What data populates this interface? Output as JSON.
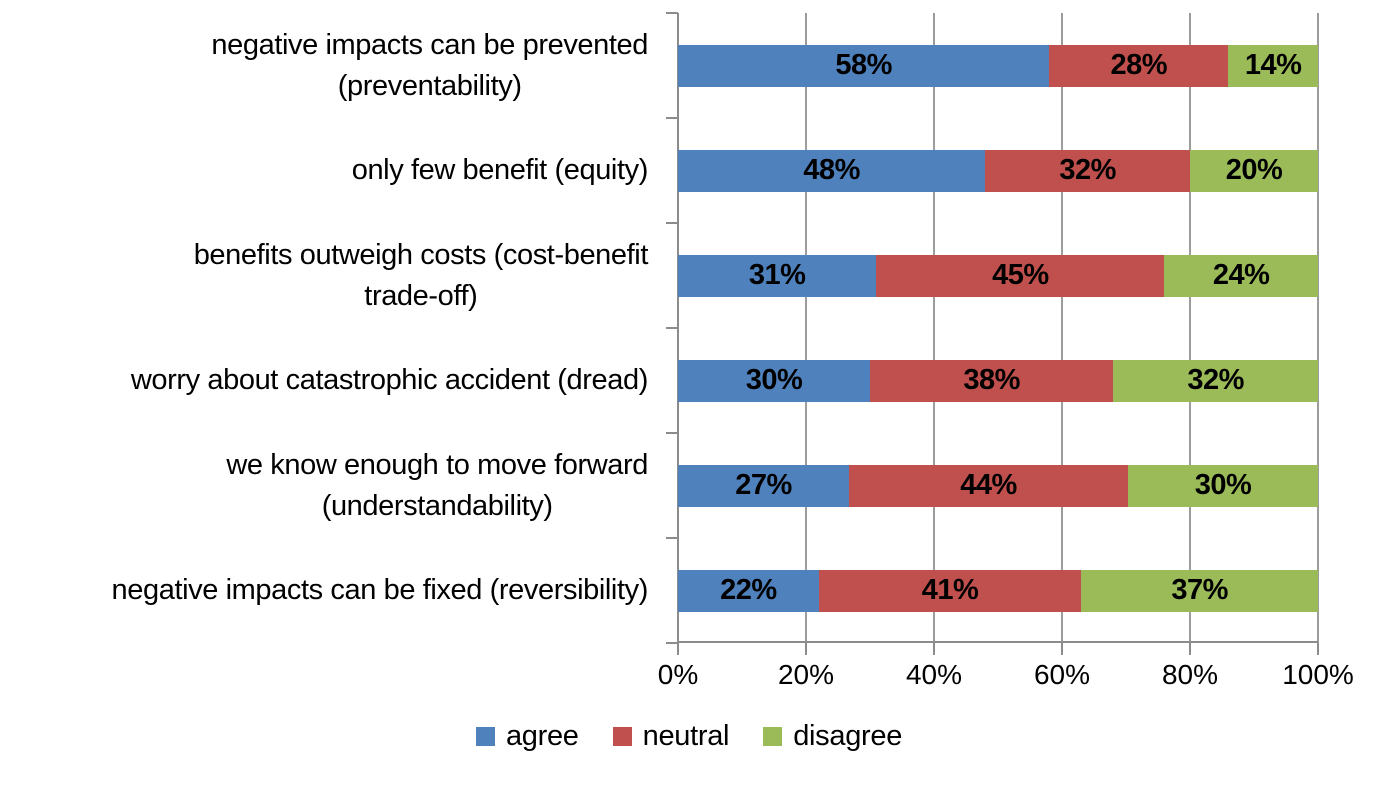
{
  "chart_data": {
    "type": "bar",
    "orientation": "horizontal",
    "stacked": true,
    "title": "",
    "categories": [
      "negative impacts can be prevented\n(preventability)",
      "only few benefit (equity)",
      "benefits outweigh costs (cost-benefit\ntrade-off)",
      "worry about catastrophic accident (dread)",
      "we know enough to move forward\n(understandability)",
      "negative impacts can be fixed (reversibility)"
    ],
    "series": [
      {
        "name": "agree",
        "color": "#4F81BD",
        "values": [
          58,
          48,
          31,
          30,
          27,
          22
        ]
      },
      {
        "name": "neutral",
        "color": "#C0504D",
        "values": [
          28,
          32,
          45,
          38,
          44,
          41
        ]
      },
      {
        "name": "disagree",
        "color": "#9BBB59",
        "values": [
          14,
          20,
          24,
          32,
          30,
          37
        ]
      }
    ],
    "value_suffix": "%",
    "xlim": [
      0,
      100
    ],
    "x_ticks": [
      "0%",
      "20%",
      "40%",
      "60%",
      "80%",
      "100%"
    ],
    "grid": true,
    "legend_position": "bottom"
  },
  "style": {
    "axis_color": "#8C8C8C",
    "gridline_color": "#9C9C9C",
    "data_label_color": "#000000"
  }
}
